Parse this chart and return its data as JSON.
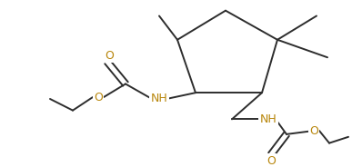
{
  "background_color": "#ffffff",
  "bond_color": "#2d2d2d",
  "nh_color": "#b8860b",
  "o_color": "#b8860b",
  "figsize": [
    3.87,
    1.84
  ],
  "dpi": 100,
  "lw": 1.4,
  "xlim": [
    0,
    387
  ],
  "ylim": [
    0,
    184
  ]
}
